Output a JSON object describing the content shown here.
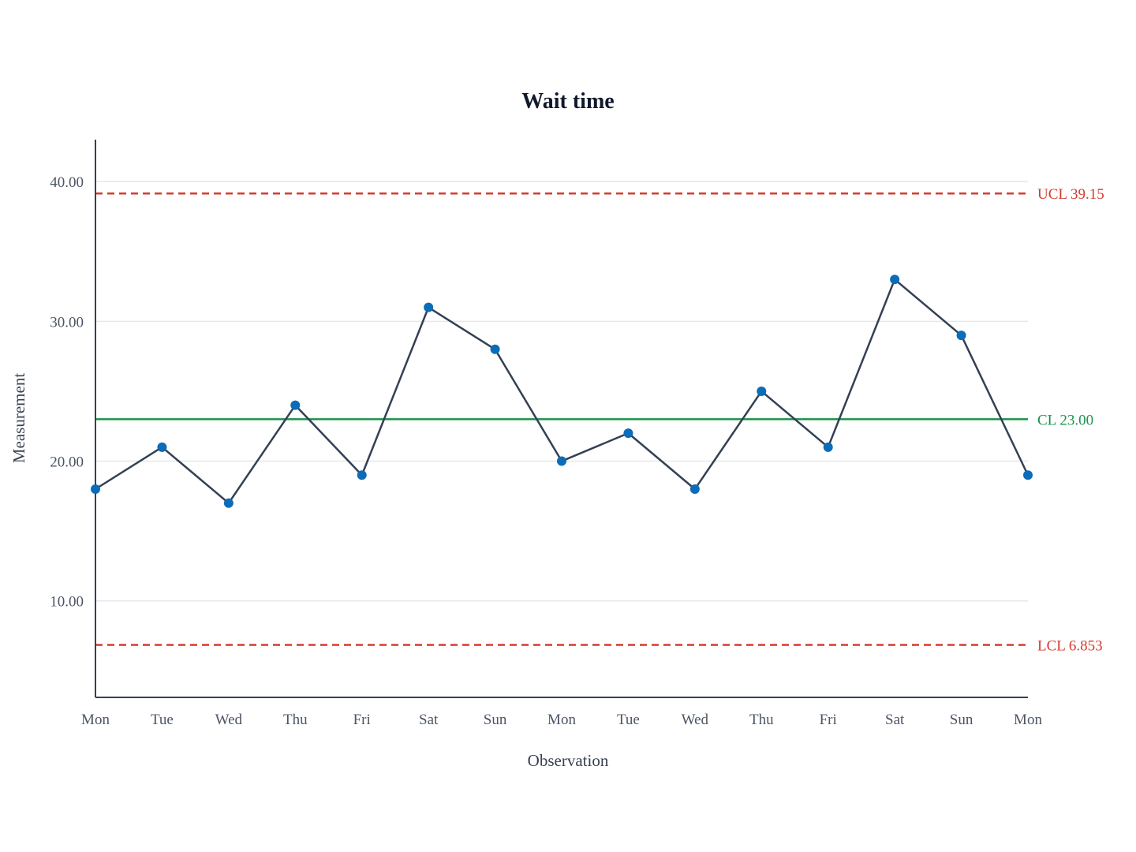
{
  "chart_data": {
    "type": "line",
    "title": "Wait time",
    "xlabel": "Observation",
    "ylabel": "Measurement",
    "categories": [
      "Mon",
      "Tue",
      "Wed",
      "Thu",
      "Fri",
      "Sat",
      "Sun",
      "Mon",
      "Tue",
      "Wed",
      "Thu",
      "Fri",
      "Sat",
      "Sun",
      "Mon"
    ],
    "values": [
      18,
      21,
      17,
      24,
      19,
      31,
      28,
      20,
      22,
      18,
      25,
      21,
      33,
      29,
      19
    ],
    "ylim": [
      3.1,
      43
    ],
    "yticks": [
      10,
      20,
      30,
      40
    ],
    "ytick_labels": [
      "10.00",
      "20.00",
      "30.00",
      "40.00"
    ],
    "grid": true,
    "control_limits": {
      "ucl": {
        "value": 39.15,
        "label": "UCL 39.15",
        "color": "#d43b2f",
        "style": "dashed"
      },
      "cl": {
        "value": 23.0,
        "label": "CL 23.00",
        "color": "#1a934a",
        "style": "solid"
      },
      "lcl": {
        "value": 6.853,
        "label": "LCL 6.853",
        "color": "#d43b2f",
        "style": "dashed"
      }
    },
    "colors": {
      "line": "#344054",
      "marker": "#0b6cb8",
      "axis": "#344054",
      "grid": "#e5e7eb"
    }
  }
}
